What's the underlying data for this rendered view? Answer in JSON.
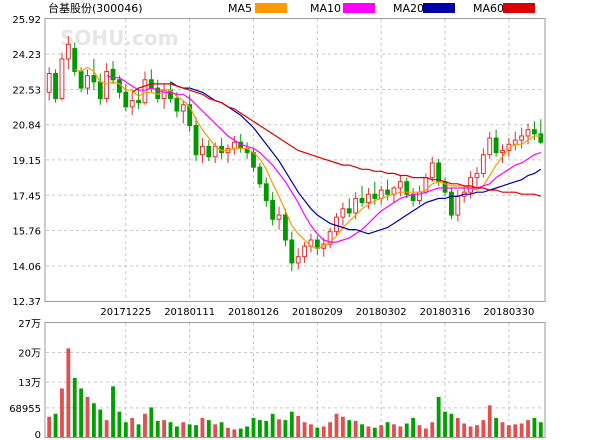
{
  "header": {
    "title": "台基股份(300046)",
    "watermark": "SOHU.com",
    "legend": [
      {
        "label": "MA5",
        "color": "#ff9900"
      },
      {
        "label": "MA10",
        "color": "#ff00ff"
      },
      {
        "label": "MA20",
        "color": "#0000aa"
      },
      {
        "label": "MA60",
        "color": "#dd0000"
      }
    ]
  },
  "colors": {
    "up": "#e03030",
    "down": "#009900",
    "up_bar": "#e05050",
    "down_bar": "#00a000"
  },
  "chart_data": [
    {
      "type": "candlestick",
      "yticks": [
        "25.92",
        "24.23",
        "22.53",
        "20.84",
        "19.15",
        "17.45",
        "15.76",
        "14.06",
        "12.37"
      ],
      "ylim": [
        12.37,
        25.92
      ],
      "xticks": [
        {
          "index": 12,
          "label": "20171225"
        },
        {
          "index": 22,
          "label": "20180111"
        },
        {
          "index": 32,
          "label": "20180126"
        },
        {
          "index": 42,
          "label": "20180209"
        },
        {
          "index": 52,
          "label": "20180302"
        },
        {
          "index": 62,
          "label": "20180316"
        },
        {
          "index": 72,
          "label": "20180330"
        }
      ],
      "ohlc": [
        [
          22.4,
          23.6,
          22.0,
          23.3
        ],
        [
          23.3,
          23.5,
          21.9,
          22.1
        ],
        [
          22.1,
          24.3,
          22.0,
          24.0
        ],
        [
          24.0,
          25.1,
          23.5,
          24.7
        ],
        [
          24.5,
          24.8,
          23.2,
          23.4
        ],
        [
          23.4,
          23.6,
          22.4,
          22.6
        ],
        [
          22.6,
          23.5,
          22.3,
          23.2
        ],
        [
          23.2,
          24.0,
          22.5,
          22.9
        ],
        [
          22.9,
          23.3,
          21.8,
          22.1
        ],
        [
          22.1,
          23.8,
          21.9,
          23.4
        ],
        [
          23.5,
          23.9,
          22.8,
          23.0
        ],
        [
          23.0,
          23.2,
          22.1,
          22.4
        ],
        [
          22.4,
          22.8,
          21.5,
          21.7
        ],
        [
          21.7,
          22.4,
          21.3,
          22.0
        ],
        [
          22.0,
          22.6,
          21.6,
          21.9
        ],
        [
          21.9,
          23.4,
          21.8,
          23.0
        ],
        [
          23.0,
          23.5,
          22.4,
          22.6
        ],
        [
          22.6,
          23.0,
          21.9,
          22.1
        ],
        [
          22.1,
          22.8,
          21.6,
          22.5
        ],
        [
          22.5,
          22.9,
          21.9,
          22.1
        ],
        [
          22.1,
          22.4,
          21.2,
          21.5
        ],
        [
          21.5,
          22.0,
          20.9,
          21.8
        ],
        [
          21.8,
          22.3,
          20.5,
          20.8
        ],
        [
          20.8,
          21.2,
          19.1,
          19.4
        ],
        [
          19.4,
          20.2,
          19.0,
          19.8
        ],
        [
          19.8,
          20.1,
          19.1,
          19.3
        ],
        [
          19.3,
          20.0,
          19.0,
          19.8
        ],
        [
          19.8,
          20.2,
          19.2,
          19.5
        ],
        [
          19.5,
          19.9,
          19.0,
          19.7
        ],
        [
          19.7,
          20.3,
          19.4,
          20.0
        ],
        [
          20.0,
          20.4,
          19.5,
          19.7
        ],
        [
          19.7,
          20.0,
          19.2,
          19.5
        ],
        [
          19.5,
          19.7,
          18.6,
          18.8
        ],
        [
          18.8,
          19.0,
          17.8,
          18.0
        ],
        [
          18.0,
          18.3,
          16.9,
          17.2
        ],
        [
          17.2,
          17.6,
          16.0,
          16.3
        ],
        [
          16.3,
          16.9,
          15.8,
          16.5
        ],
        [
          16.5,
          16.8,
          15.0,
          15.3
        ],
        [
          15.3,
          15.7,
          13.8,
          14.2
        ],
        [
          14.2,
          14.9,
          13.9,
          14.5
        ],
        [
          14.5,
          15.2,
          14.2,
          15.0
        ],
        [
          15.0,
          15.6,
          14.7,
          15.3
        ],
        [
          15.3,
          15.5,
          14.6,
          14.9
        ],
        [
          14.9,
          15.4,
          14.5,
          15.1
        ],
        [
          15.1,
          15.9,
          14.9,
          15.7
        ],
        [
          15.7,
          16.6,
          15.5,
          16.4
        ],
        [
          16.4,
          17.1,
          16.0,
          16.8
        ],
        [
          16.8,
          17.3,
          16.4,
          16.6
        ],
        [
          16.6,
          17.6,
          16.3,
          17.3
        ],
        [
          17.3,
          17.9,
          16.9,
          17.1
        ],
        [
          17.1,
          17.8,
          16.8,
          17.5
        ],
        [
          17.5,
          18.1,
          17.0,
          17.3
        ],
        [
          17.3,
          17.9,
          17.0,
          17.7
        ],
        [
          17.7,
          18.2,
          17.2,
          17.5
        ],
        [
          17.5,
          17.9,
          17.1,
          17.8
        ],
        [
          17.8,
          18.4,
          17.4,
          18.1
        ],
        [
          18.1,
          18.3,
          17.3,
          17.5
        ],
        [
          17.5,
          17.8,
          16.9,
          17.2
        ],
        [
          17.2,
          17.9,
          17.0,
          17.6
        ],
        [
          17.6,
          18.5,
          17.5,
          18.3
        ],
        [
          18.3,
          19.3,
          18.1,
          19.0
        ],
        [
          19.0,
          19.2,
          17.9,
          18.1
        ],
        [
          18.1,
          18.3,
          17.4,
          17.6
        ],
        [
          17.6,
          17.8,
          16.3,
          16.5
        ],
        [
          16.5,
          17.7,
          16.2,
          17.4
        ],
        [
          17.4,
          17.9,
          17.1,
          17.6
        ],
        [
          17.6,
          18.6,
          17.3,
          18.3
        ],
        [
          18.3,
          18.8,
          17.8,
          18.5
        ],
        [
          18.5,
          19.7,
          18.3,
          19.4
        ],
        [
          19.4,
          20.5,
          19.2,
          20.2
        ],
        [
          20.2,
          20.6,
          19.3,
          19.5
        ],
        [
          19.5,
          19.9,
          19.0,
          19.6
        ],
        [
          19.6,
          20.2,
          19.3,
          19.9
        ],
        [
          19.9,
          20.5,
          19.6,
          20.1
        ],
        [
          20.1,
          20.7,
          19.7,
          20.3
        ],
        [
          20.3,
          20.9,
          19.9,
          20.6
        ],
        [
          20.6,
          21.0,
          20.1,
          20.4
        ],
        [
          20.4,
          21.1,
          19.9,
          20.0
        ]
      ],
      "ma": {
        "MA5": [
          null,
          null,
          null,
          null,
          23.5,
          23.4,
          23.6,
          23.4,
          22.9,
          22.8,
          22.9,
          22.8,
          22.5,
          22.5,
          22.2,
          22.4,
          22.4,
          22.3,
          22.4,
          22.5,
          22.2,
          22.0,
          21.7,
          21.1,
          20.6,
          20.2,
          19.8,
          19.6,
          19.6,
          19.7,
          19.7,
          19.7,
          19.5,
          19.2,
          18.7,
          18.0,
          17.4,
          16.7,
          16.0,
          15.6,
          15.3,
          15.0,
          14.9,
          15.0,
          15.2,
          15.5,
          15.9,
          16.2,
          16.5,
          16.8,
          17.0,
          17.2,
          17.3,
          17.4,
          17.5,
          17.6,
          17.6,
          17.6,
          17.6,
          17.7,
          18.0,
          18.1,
          18.0,
          17.9,
          17.9,
          17.9,
          17.8,
          17.7,
          17.9,
          18.4,
          18.9,
          19.3,
          19.7,
          19.9,
          19.9,
          20.1,
          20.3,
          20.3
        ],
        "MA10": [
          null,
          null,
          null,
          null,
          null,
          null,
          null,
          null,
          null,
          23.2,
          23.1,
          23.1,
          22.9,
          22.7,
          22.5,
          22.5,
          22.6,
          22.5,
          22.4,
          22.4,
          22.3,
          22.3,
          22.1,
          21.8,
          21.5,
          21.2,
          20.9,
          20.6,
          20.3,
          20.1,
          19.9,
          19.8,
          19.7,
          19.5,
          19.2,
          18.9,
          18.5,
          18.1,
          17.6,
          17.1,
          16.5,
          16.0,
          15.6,
          15.3,
          15.2,
          15.2,
          15.3,
          15.4,
          15.6,
          15.8,
          16.1,
          16.4,
          16.7,
          16.9,
          17.1,
          17.3,
          17.4,
          17.5,
          17.5,
          17.6,
          17.7,
          17.8,
          17.8,
          17.8,
          17.8,
          17.8,
          17.8,
          17.8,
          17.9,
          18.0,
          18.3,
          18.5,
          18.7,
          18.9,
          19.0,
          19.2,
          19.4,
          19.5
        ],
        "MA20": [
          null,
          null,
          null,
          null,
          null,
          null,
          null,
          null,
          null,
          null,
          null,
          null,
          null,
          null,
          null,
          null,
          null,
          null,
          null,
          22.9,
          22.7,
          22.6,
          22.6,
          22.5,
          22.4,
          22.2,
          22.0,
          21.9,
          21.7,
          21.5,
          21.3,
          21.0,
          20.7,
          20.3,
          19.9,
          19.5,
          19.1,
          18.6,
          18.1,
          17.6,
          17.2,
          16.8,
          16.5,
          16.3,
          16.1,
          16.0,
          15.9,
          15.8,
          15.8,
          15.7,
          15.6,
          15.7,
          15.8,
          15.9,
          16.1,
          16.3,
          16.5,
          16.7,
          16.9,
          17.1,
          17.2,
          17.3,
          17.3,
          17.4,
          17.4,
          17.5,
          17.5,
          17.6,
          17.6,
          17.7,
          17.8,
          17.9,
          18.0,
          18.1,
          18.2,
          18.4,
          18.5,
          18.7
        ],
        "MA60": [
          null,
          null,
          null,
          null,
          null,
          null,
          null,
          null,
          null,
          null,
          null,
          null,
          null,
          22.4,
          22.6,
          22.7,
          22.8,
          22.8,
          22.8,
          22.8,
          22.7,
          22.6,
          22.5,
          22.4,
          22.3,
          22.1,
          22.0,
          21.9,
          21.7,
          21.6,
          21.4,
          21.2,
          21.0,
          20.8,
          20.6,
          20.4,
          20.2,
          20.0,
          19.8,
          19.6,
          19.5,
          19.4,
          19.3,
          19.2,
          19.1,
          19.0,
          18.9,
          18.9,
          18.8,
          18.7,
          18.7,
          18.6,
          18.6,
          18.5,
          18.5,
          18.4,
          18.4,
          18.3,
          18.3,
          18.3,
          18.2,
          18.2,
          18.1,
          18.0,
          18.0,
          17.9,
          17.9,
          17.8,
          17.8,
          17.7,
          17.7,
          17.6,
          17.6,
          17.6,
          17.5,
          17.5,
          17.5,
          17.4
        ]
      }
    },
    {
      "type": "bar",
      "yticks": [
        "27万",
        "20万",
        "13万",
        "68955",
        "0"
      ],
      "tick_values": [
        270000,
        200000,
        130000,
        68955,
        0
      ],
      "ylim": [
        0,
        270000
      ],
      "values": [
        48000,
        55000,
        115000,
        210000,
        140000,
        115000,
        95000,
        80000,
        65000,
        40000,
        120000,
        60000,
        35000,
        45000,
        30000,
        55000,
        70000,
        38000,
        40000,
        35000,
        25000,
        35000,
        30000,
        28000,
        45000,
        40000,
        30000,
        35000,
        22000,
        18000,
        20000,
        25000,
        45000,
        40000,
        38000,
        55000,
        42000,
        40000,
        60000,
        50000,
        35000,
        30000,
        22000,
        25000,
        35000,
        55000,
        48000,
        40000,
        38000,
        30000,
        25000,
        22000,
        28000,
        35000,
        30000,
        25000,
        32000,
        45000,
        28000,
        20000,
        35000,
        95000,
        60000,
        55000,
        45000,
        32000,
        25000,
        28000,
        40000,
        75000,
        45000,
        35000,
        28000,
        30000,
        32000,
        40000,
        45000,
        35000
      ]
    }
  ]
}
